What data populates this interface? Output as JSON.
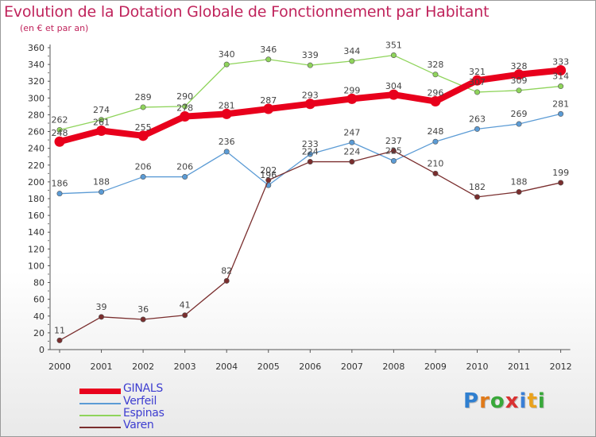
{
  "title": "Evolution de la Dotation Globale de Fonctionnement par Habitant",
  "subtitle": "(en € et par an)",
  "logo": {
    "text": "Proxiti",
    "letter_colors": [
      "#2f7fd0",
      "#e07a1a",
      "#39a83a",
      "#d93232",
      "#3a7fd6",
      "#eaa21c",
      "#39a83a"
    ]
  },
  "chart_data": {
    "type": "line",
    "title": "Evolution de la Dotation Globale de Fonctionnement par Habitant",
    "subtitle": "(en € et par an)",
    "x": [
      "2000",
      "2001",
      "2002",
      "2003",
      "2004",
      "2005",
      "2006",
      "2007",
      "2008",
      "2009",
      "2010",
      "2011",
      "2012"
    ],
    "ylim": [
      0,
      360
    ],
    "yticks": [
      0,
      20,
      40,
      60,
      80,
      100,
      120,
      140,
      160,
      180,
      200,
      220,
      240,
      260,
      280,
      300,
      320,
      340,
      360
    ],
    "grid": false,
    "legend_position": "bottom-left",
    "series": [
      {
        "name": "GINALS",
        "color": "#e8001c",
        "values": [
          248,
          261,
          255,
          278,
          281,
          287,
          293,
          299,
          304,
          296,
          321,
          328,
          333
        ]
      },
      {
        "name": "Verfeil",
        "color": "#5b9bd5",
        "values": [
          186,
          188,
          206,
          206,
          236,
          196,
          233,
          247,
          225,
          248,
          263,
          269,
          281
        ]
      },
      {
        "name": "Espinas",
        "color": "#8fd45b",
        "values": [
          262,
          274,
          289,
          290,
          340,
          346,
          339,
          344,
          351,
          328,
          307,
          309,
          314
        ]
      },
      {
        "name": "Varen",
        "color": "#7a2e2e",
        "values": [
          11,
          39,
          36,
          41,
          82,
          202,
          224,
          224,
          237,
          210,
          182,
          188,
          199
        ]
      }
    ]
  }
}
